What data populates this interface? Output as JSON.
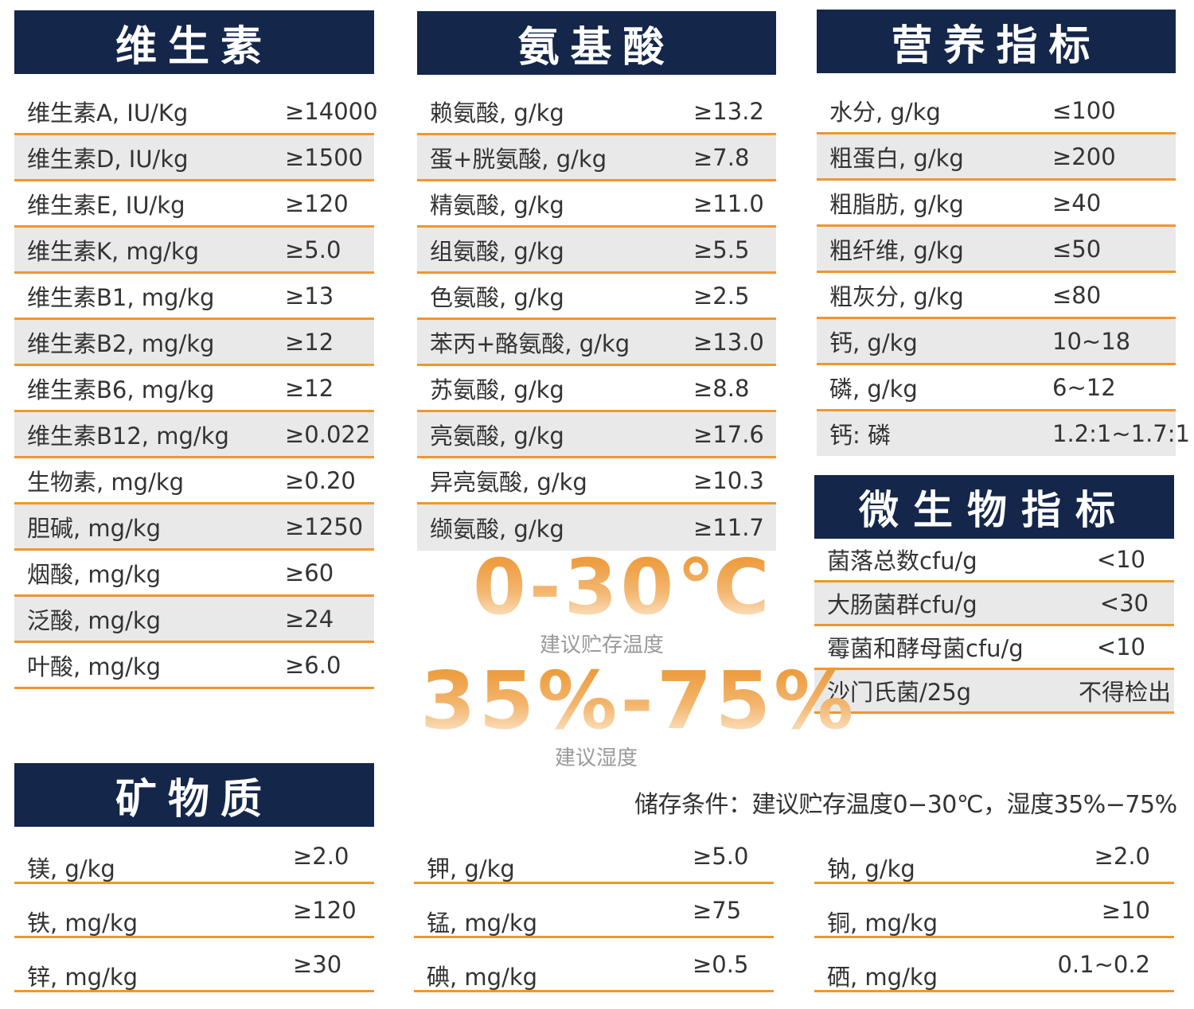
{
  "vitamins": {
    "title": "维生素",
    "rows": [
      {
        "label": "维生素A, IU/Kg",
        "value": "≥14000"
      },
      {
        "label": "维生素D, IU/kg",
        "value": "≥1500"
      },
      {
        "label": "维生素E, IU/kg",
        "value": "≥120"
      },
      {
        "label": "维生素K, mg/kg",
        "value": "≥5.0"
      },
      {
        "label": "维生素B1, mg/kg",
        "value": "≥13"
      },
      {
        "label": "维生素B2, mg/kg",
        "value": "≥12"
      },
      {
        "label": "维生素B6, mg/kg",
        "value": "≥12"
      },
      {
        "label": "维生素B12, mg/kg",
        "value": "≥0.022"
      },
      {
        "label": "生物素, mg/kg",
        "value": "≥0.20"
      },
      {
        "label": "胆碱, mg/kg",
        "value": "≥1250"
      },
      {
        "label": "烟酸, mg/kg",
        "value": "≥60"
      },
      {
        "label": "泛酸, mg/kg",
        "value": "≥24"
      },
      {
        "label": "叶酸, mg/kg",
        "value": "≥6.0"
      }
    ]
  },
  "amino_acids": {
    "title": "氨基酸",
    "rows": [
      {
        "label": "赖氨酸, g/kg",
        "value": "≥13.2"
      },
      {
        "label": "蛋+胱氨酸, g/kg",
        "value": "≥7.8"
      },
      {
        "label": "精氨酸, g/kg",
        "value": "≥11.0"
      },
      {
        "label": "组氨酸, g/kg",
        "value": "≥5.5"
      },
      {
        "label": "色氨酸, g/kg",
        "value": "≥2.5"
      },
      {
        "label": "苯丙+酪氨酸, g/kg",
        "value": "≥13.0"
      },
      {
        "label": "苏氨酸, g/kg",
        "value": "≥8.8"
      },
      {
        "label": "亮氨酸, g/kg",
        "value": "≥17.6"
      },
      {
        "label": "异亮氨酸, g/kg",
        "value": "≥10.3"
      },
      {
        "label": "缬氨酸, g/kg",
        "value": "≥11.7"
      }
    ]
  },
  "nutrition": {
    "title": "营养指标",
    "rows": [
      {
        "label": "水分, g/kg",
        "value": "≤100"
      },
      {
        "label": "粗蛋白, g/kg",
        "value": "≥200"
      },
      {
        "label": "粗脂肪, g/kg",
        "value": "≥40"
      },
      {
        "label": "粗纤维, g/kg",
        "value": "≤50"
      },
      {
        "label": "粗灰分, g/kg",
        "value": "≤80"
      },
      {
        "label": "钙, g/kg",
        "value": "10~18"
      },
      {
        "label": "磷, g/kg",
        "value": "6~12"
      },
      {
        "label": "钙: 磷",
        "value": "1.2:1~1.7:1"
      }
    ]
  },
  "microbial": {
    "title": "微生物指标",
    "rows": [
      {
        "label": "菌落总数cfu/g",
        "value": "<10"
      },
      {
        "label": "大肠菌群cfu/g",
        "value": "<30"
      },
      {
        "label": "霉菌和酵母菌cfu/g",
        "value": "<10"
      },
      {
        "label": "沙门氏菌/25g",
        "value": "不得检出"
      }
    ]
  },
  "minerals": {
    "title": "矿物质",
    "col_a": [
      {
        "label": "镁, g/kg",
        "value": "≥2.0"
      },
      {
        "label": "铁, mg/kg",
        "value": "≥120"
      },
      {
        "label": "锌, mg/kg",
        "value": "≥30"
      }
    ],
    "col_b": [
      {
        "label": "钾, g/kg",
        "value": "≥5.0"
      },
      {
        "label": "锰, mg/kg",
        "value": "≥75"
      },
      {
        "label": "碘, mg/kg",
        "value": "≥0.5"
      }
    ],
    "col_c": [
      {
        "label": "钠, g/kg",
        "value": "≥2.0"
      },
      {
        "label": "铜, mg/kg",
        "value": "≥10"
      },
      {
        "label": "硒, mg/kg",
        "value": "0.1~0.2"
      }
    ]
  },
  "storage": {
    "temperature_big": "0-30℃",
    "temperature_caption": "建议贮存温度",
    "humidity_big": "35%-75%",
    "humidity_caption": "建议湿度",
    "note": "储存条件：建议贮存温度0−30℃，湿度35%−75%"
  },
  "colors": {
    "header_bg": "#14264a",
    "accent_line": "#f0962e",
    "alt_row_bg": "#e9e9e9"
  }
}
